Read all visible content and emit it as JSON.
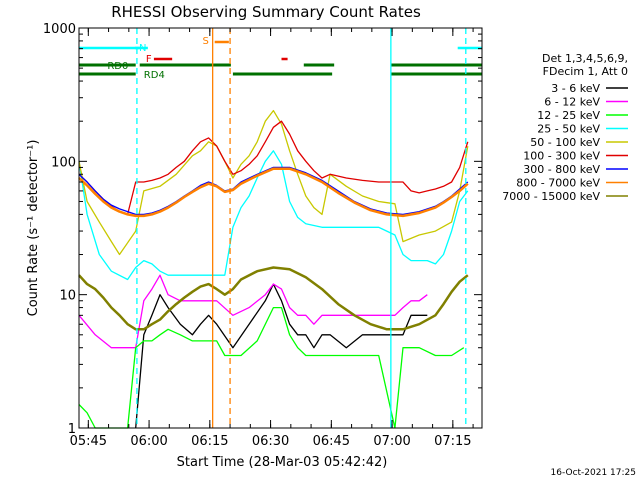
{
  "chart_data": {
    "type": "line",
    "title": "RHESSI Observing Summary Count Rates",
    "xlabel": "Start Time (28-Mar-03 05:42:42)",
    "ylabel": "Count Rate (s⁻¹ detector⁻¹)",
    "yscale": "log",
    "ylim": [
      1,
      1000
    ],
    "xlim_minutes": [
      0,
      99.5
    ],
    "y_ticks": [
      {
        "value": 1,
        "label": "1"
      },
      {
        "value": 10,
        "label": "10"
      },
      {
        "value": 100,
        "label": "100"
      },
      {
        "value": 1000,
        "label": "1000"
      }
    ],
    "x_ticks": [
      {
        "value": 2.3,
        "label": "05:45"
      },
      {
        "value": 17.3,
        "label": "06:00"
      },
      {
        "value": 32.3,
        "label": "06:15"
      },
      {
        "value": 47.3,
        "label": "06:30"
      },
      {
        "value": 62.3,
        "label": "06:45"
      },
      {
        "value": 77.3,
        "label": "07:00"
      },
      {
        "value": 92.3,
        "label": "07:15"
      }
    ],
    "legend_header": [
      "Det 1,3,4,5,6,9,",
      "FDecim 1, Att 0"
    ],
    "series": [
      {
        "name": "3 - 6 keV",
        "color": "#000000",
        "x": [
          14,
          16,
          18,
          20,
          22,
          25,
          28,
          30,
          32,
          34,
          38,
          42,
          46,
          48,
          50,
          52,
          54,
          56,
          58,
          60,
          62,
          66,
          70,
          74,
          78,
          80,
          82,
          84,
          86
        ],
        "y": [
          1,
          5,
          7,
          10,
          8,
          6,
          5,
          6,
          7,
          6,
          4,
          6,
          9,
          12,
          9,
          6,
          5,
          5,
          4,
          5,
          5,
          4,
          5,
          5,
          5,
          5,
          7,
          7,
          7
        ]
      },
      {
        "name": "6 - 12 keV",
        "color": "#ff00ff",
        "x": [
          0,
          4,
          8,
          12,
          14,
          16,
          18,
          20,
          22,
          25,
          28,
          30,
          32,
          34,
          38,
          42,
          46,
          48,
          50,
          52,
          54,
          56,
          58,
          60,
          62,
          66,
          70,
          74,
          78,
          80,
          82,
          84,
          86
        ],
        "y": [
          7,
          5,
          4,
          4,
          4,
          9,
          11,
          14,
          10,
          9,
          9,
          9,
          9,
          9,
          7,
          8,
          10,
          12,
          11,
          8,
          7,
          7,
          6,
          7,
          7,
          7,
          7,
          7,
          7,
          8,
          9,
          9,
          10
        ]
      },
      {
        "name": "12 - 25 keV",
        "color": "#00ff00",
        "x": [
          0,
          2,
          4,
          6,
          8,
          10,
          12,
          14,
          16,
          18,
          20,
          22,
          25,
          28,
          30,
          32,
          34,
          36,
          40,
          44,
          48,
          50,
          52,
          54,
          56,
          58,
          62,
          66,
          70,
          74,
          78,
          80,
          84,
          88,
          92,
          95
        ],
        "y": [
          1.5,
          1.3,
          1,
          1,
          1,
          1,
          1,
          4,
          4.5,
          4.5,
          5,
          5.5,
          5,
          4.5,
          4.5,
          4.5,
          4.5,
          3.5,
          3.5,
          4.5,
          8,
          8,
          5,
          4,
          3.5,
          3.5,
          3.5,
          3.5,
          3.5,
          3.5,
          1,
          4,
          4,
          3.5,
          3.5,
          4
        ]
      },
      {
        "name": "25 - 50 keV",
        "color": "#00ffff",
        "x": [
          0,
          2,
          5,
          8,
          12,
          14,
          16,
          18,
          20,
          22,
          25,
          28,
          30,
          32,
          34,
          36,
          38,
          40,
          42,
          44,
          46,
          48,
          50,
          52,
          54,
          56,
          58,
          60,
          62,
          66,
          70,
          74,
          78,
          80,
          82,
          84,
          86,
          88,
          90,
          92,
          94,
          96
        ],
        "y": [
          100,
          40,
          20,
          15,
          13,
          16,
          18,
          17,
          15,
          14,
          14,
          14,
          14,
          14,
          14,
          14,
          32,
          45,
          55,
          75,
          100,
          120,
          95,
          50,
          38,
          34,
          33,
          32,
          32,
          32,
          32,
          32,
          28,
          20,
          18,
          18,
          18,
          17,
          20,
          30,
          50,
          60
        ]
      },
      {
        "name": "50 - 100 keV",
        "color": "#c8c800",
        "x": [
          0,
          2,
          5,
          8,
          10,
          14,
          16,
          20,
          24,
          28,
          30,
          32,
          34,
          36,
          38,
          40,
          42,
          44,
          46,
          48,
          50,
          52,
          54,
          56,
          58,
          60,
          62,
          66,
          70,
          74,
          78,
          80,
          84,
          88,
          92,
          94,
          96
        ],
        "y": [
          100,
          50,
          35,
          25,
          20,
          30,
          60,
          65,
          80,
          110,
          120,
          140,
          130,
          100,
          75,
          95,
          110,
          140,
          200,
          240,
          190,
          120,
          80,
          55,
          45,
          40,
          80,
          65,
          55,
          50,
          48,
          25,
          28,
          30,
          35,
          60,
          130
        ]
      },
      {
        "name": "100 - 300 keV",
        "color": "#e00000",
        "x": [
          0,
          2,
          4,
          6,
          8,
          10,
          12,
          14,
          16,
          18,
          20,
          22,
          24,
          26,
          28,
          30,
          32,
          34,
          36,
          38,
          40,
          42,
          44,
          46,
          48,
          50,
          52,
          54,
          56,
          58,
          60,
          62,
          66,
          70,
          74,
          78,
          80,
          82,
          84,
          86,
          88,
          90,
          92,
          94,
          96
        ],
        "y": [
          80,
          70,
          60,
          52,
          46,
          42,
          40,
          70,
          70,
          72,
          75,
          80,
          90,
          100,
          120,
          140,
          150,
          130,
          100,
          80,
          85,
          95,
          110,
          140,
          180,
          200,
          160,
          120,
          100,
          85,
          75,
          80,
          75,
          72,
          70,
          70,
          70,
          60,
          58,
          60,
          62,
          65,
          70,
          90,
          140
        ]
      },
      {
        "name": "300 - 800 keV",
        "color": "#0000ff",
        "x": [
          0,
          2,
          4,
          6,
          8,
          10,
          12,
          14,
          16,
          18,
          20,
          22,
          24,
          26,
          28,
          30,
          32,
          34,
          36,
          38,
          40,
          44,
          48,
          52,
          56,
          60,
          64,
          68,
          72,
          76,
          80,
          84,
          88,
          90,
          92,
          94,
          96
        ],
        "y": [
          80,
          70,
          60,
          52,
          47,
          44,
          42,
          40,
          40,
          41,
          43,
          46,
          50,
          55,
          60,
          66,
          70,
          66,
          60,
          62,
          70,
          80,
          90,
          90,
          82,
          72,
          60,
          50,
          44,
          41,
          40,
          42,
          46,
          50,
          55,
          62,
          70
        ]
      },
      {
        "name": "800 - 7000 keV",
        "color": "#ff8000",
        "x": [
          0,
          2,
          4,
          6,
          8,
          10,
          12,
          14,
          16,
          18,
          20,
          22,
          24,
          26,
          28,
          30,
          32,
          34,
          36,
          38,
          40,
          44,
          48,
          52,
          56,
          60,
          64,
          68,
          72,
          76,
          80,
          84,
          88,
          90,
          92,
          94,
          96
        ],
        "y": [
          75,
          66,
          57,
          50,
          45,
          42,
          40,
          39,
          39,
          40,
          42,
          45,
          49,
          54,
          59,
          64,
          68,
          65,
          59,
          61,
          68,
          78,
          88,
          88,
          80,
          70,
          58,
          49,
          43,
          40,
          39,
          41,
          45,
          49,
          54,
          60,
          68
        ]
      },
      {
        "name": "7000 - 15000 keV",
        "color": "#808000",
        "x": [
          0,
          2,
          4,
          6,
          8,
          10,
          12,
          14,
          16,
          18,
          20,
          22,
          24,
          26,
          28,
          30,
          32,
          34,
          36,
          38,
          40,
          44,
          48,
          52,
          56,
          60,
          64,
          68,
          72,
          76,
          80,
          84,
          88,
          90,
          92,
          94,
          96
        ],
        "y": [
          14,
          12,
          11,
          9.5,
          8,
          7,
          6,
          5.5,
          5.5,
          6,
          6.5,
          7.5,
          8.5,
          9.5,
          10.5,
          11.5,
          12,
          11,
          10,
          11,
          13,
          15,
          16,
          15.5,
          13.5,
          11,
          8.5,
          7,
          6,
          5.5,
          5.5,
          6,
          7,
          8.5,
          10.5,
          12.5,
          14
        ]
      }
    ],
    "bands": [
      {
        "label": "N",
        "color": "#00ffff",
        "segments": [
          [
            0,
            15
          ]
        ]
      },
      {
        "label": "N",
        "color": "#00ffff",
        "segments": [
          [
            93.5,
            99.5
          ]
        ]
      },
      {
        "label": "",
        "color": "#00ffff",
        "segments": [
          [
            13.8,
            17
          ]
        ]
      },
      {
        "label": "F",
        "color": "#e00000",
        "segments": [
          [
            18.5,
            23
          ]
        ]
      },
      {
        "label": "",
        "color": "#e00000",
        "segments": [
          [
            50,
            51.5
          ]
        ]
      },
      {
        "label": "S",
        "color": "#ff8000",
        "segments": [
          [
            33.5,
            37
          ]
        ]
      },
      {
        "label": "RD0",
        "color": "#007000",
        "segments": [
          [
            0,
            14
          ],
          [
            15,
            37.5
          ],
          [
            55.5,
            63
          ],
          [
            77,
            99.5
          ]
        ]
      },
      {
        "label": "RD4",
        "color": "#007000",
        "segments": [
          [
            0,
            14
          ],
          [
            38,
            62.5
          ],
          [
            77,
            99.5
          ]
        ]
      }
    ],
    "vlines": [
      {
        "x": 14.3,
        "color": "#00ffff",
        "style": "dashed"
      },
      {
        "x": 33.0,
        "color": "#ff8000",
        "style": "solid"
      },
      {
        "x": 37.3,
        "color": "#ff8000",
        "style": "dashed"
      },
      {
        "x": 77.0,
        "color": "#00ffff",
        "style": "solid"
      },
      {
        "x": 95.5,
        "color": "#00ffff",
        "style": "dashed"
      }
    ],
    "footer_timestamp": "16-Oct-2021 17:25"
  }
}
